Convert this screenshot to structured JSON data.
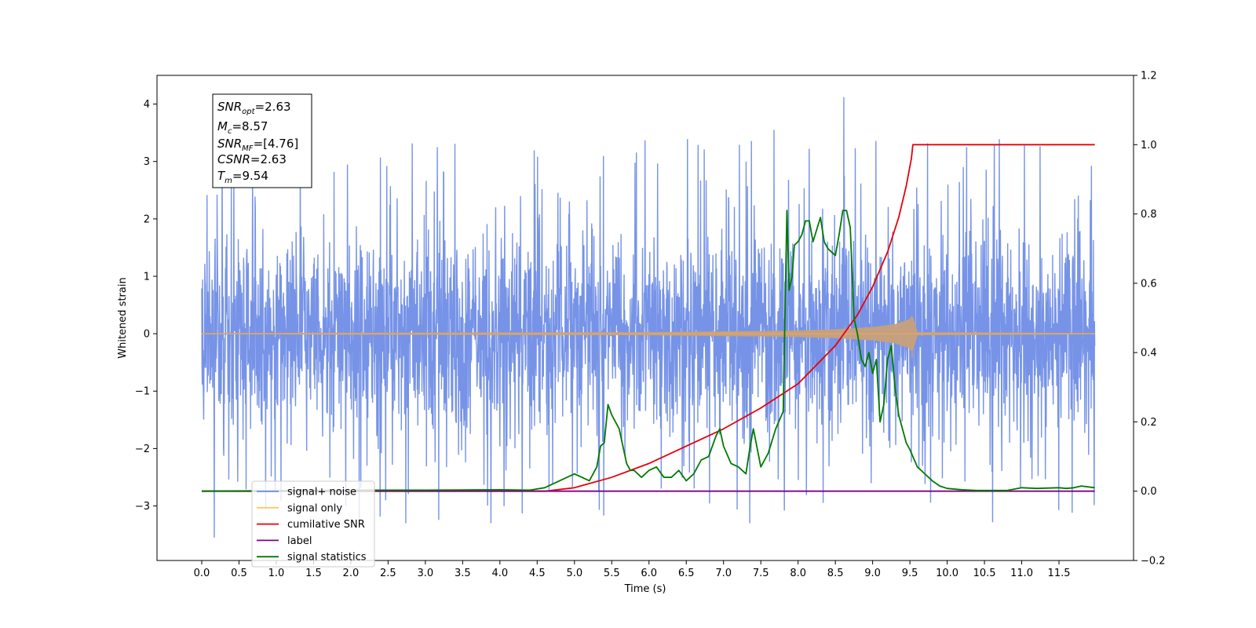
{
  "chart_data": {
    "type": "line",
    "xlabel": "Time (s)",
    "ylabel": "Whitened strain",
    "xlim": [
      -0.6,
      12.5
    ],
    "ylim": [
      -3.95,
      4.5
    ],
    "y2lim": [
      -0.2,
      1.2
    ],
    "x_ticks": [
      0.0,
      0.5,
      1.0,
      1.5,
      2.0,
      2.5,
      3.0,
      3.5,
      4.0,
      4.5,
      5.0,
      5.5,
      6.0,
      6.5,
      7.0,
      7.5,
      8.0,
      8.5,
      9.0,
      9.5,
      10.0,
      10.5,
      11.0,
      11.5
    ],
    "x_tick_labels": [
      "0.0",
      "0.5",
      "1.0",
      "1.5",
      "2.0",
      "2.5",
      "3.0",
      "3.5",
      "4.0",
      "4.5",
      "5.0",
      "5.5",
      "6.0",
      "6.5",
      "7.0",
      "7.5",
      "8.0",
      "8.5",
      "9.0",
      "9.5",
      "10.0",
      "10.5",
      "11.0",
      "11.5"
    ],
    "y_ticks": [
      -3,
      -2,
      -1,
      0,
      1,
      2,
      3,
      4
    ],
    "y_tick_labels": [
      "−3",
      "−2",
      "−1",
      "0",
      "1",
      "2",
      "3",
      "4"
    ],
    "y2_ticks": [
      -0.2,
      0.0,
      0.2,
      0.4,
      0.6,
      0.8,
      1.0,
      1.2
    ],
    "y2_tick_labels": [
      "−0.2",
      "0.0",
      "0.2",
      "0.4",
      "0.6",
      "0.8",
      "1.0",
      "1.2"
    ],
    "grid": false,
    "legend_placement": "lower-left",
    "annotation": {
      "lines": [
        {
          "main": "SNR",
          "sub": "opt",
          "rest": "=2.63"
        },
        {
          "main": "M",
          "sub": "c",
          "rest": "=8.57"
        },
        {
          "main": "SNR",
          "sub": "MF",
          "rest": "=[4.76]"
        },
        {
          "main": "CSNR",
          "sub": "",
          "rest": "=2.63"
        },
        {
          "main": "T",
          "sub": "m",
          "rest": "=9.54"
        }
      ]
    },
    "legend": [
      {
        "label": "signal+ noise",
        "color": "#6f8de6"
      },
      {
        "label": "signal only",
        "color": "#ffc864"
      },
      {
        "label": "cumilative SNR",
        "color": "#e8000b"
      },
      {
        "label": "label",
        "color": "#800080"
      },
      {
        "label": "signal statistics",
        "color": "#007a00"
      }
    ],
    "noise_series": {
      "axis": "left",
      "x_range": [
        0.0,
        11.98
      ],
      "typical_range": [
        -1.8,
        1.8
      ],
      "spike_range": [
        -3.55,
        4.12
      ],
      "color": "#6f8de6"
    },
    "signal_series": {
      "axis": "left",
      "x": [
        0.0,
        6.0,
        7.0,
        7.5,
        8.0,
        8.5,
        9.0,
        9.3,
        9.5,
        9.53,
        9.6,
        12.0
      ],
      "envelope": [
        0.005,
        0.02,
        0.035,
        0.04,
        0.05,
        0.07,
        0.11,
        0.16,
        0.25,
        0.32,
        0.02,
        0.005
      ],
      "color": "#c8a07a"
    },
    "series": [
      {
        "name": "cumilative SNR",
        "axis": "right",
        "color": "#e8000b",
        "x": [
          0.0,
          4.6,
          5.0,
          5.5,
          6.0,
          6.5,
          7.0,
          7.5,
          8.0,
          8.5,
          8.8,
          9.0,
          9.2,
          9.35,
          9.45,
          9.52,
          9.54,
          11.98
        ],
        "values": [
          0.0,
          0.0,
          0.01,
          0.04,
          0.08,
          0.13,
          0.18,
          0.24,
          0.31,
          0.42,
          0.51,
          0.59,
          0.69,
          0.79,
          0.88,
          0.96,
          1.0,
          1.0
        ]
      },
      {
        "name": "label",
        "axis": "right",
        "color": "#800080",
        "x": [
          0.0,
          11.98
        ],
        "values": [
          0.0,
          0.0
        ]
      },
      {
        "name": "signal statistics",
        "axis": "right",
        "color": "#007a00",
        "x": [
          0.0,
          2.0,
          3.0,
          4.0,
          4.4,
          4.6,
          4.9,
          5.0,
          5.1,
          5.2,
          5.3,
          5.35,
          5.4,
          5.45,
          5.5,
          5.6,
          5.7,
          5.75,
          5.8,
          5.9,
          6.0,
          6.1,
          6.2,
          6.3,
          6.4,
          6.5,
          6.6,
          6.7,
          6.8,
          6.9,
          6.95,
          7.0,
          7.1,
          7.2,
          7.3,
          7.35,
          7.4,
          7.5,
          7.55,
          7.6,
          7.7,
          7.8,
          7.85,
          7.88,
          7.92,
          7.95,
          8.0,
          8.05,
          8.1,
          8.15,
          8.2,
          8.3,
          8.35,
          8.4,
          8.5,
          8.55,
          8.6,
          8.65,
          8.7,
          8.75,
          8.8,
          8.85,
          8.9,
          8.95,
          9.0,
          9.05,
          9.1,
          9.15,
          9.2,
          9.25,
          9.3,
          9.35,
          9.4,
          9.45,
          9.5,
          9.6,
          9.7,
          9.8,
          9.9,
          10.0,
          10.2,
          10.4,
          10.6,
          10.8,
          11.0,
          11.2,
          11.5,
          11.6,
          11.7,
          11.8,
          11.98
        ],
        "values": [
          0.0,
          0.003,
          0.003,
          0.004,
          0.003,
          0.01,
          0.04,
          0.05,
          0.04,
          0.03,
          0.07,
          0.13,
          0.14,
          0.25,
          0.22,
          0.18,
          0.08,
          0.06,
          0.06,
          0.04,
          0.06,
          0.07,
          0.04,
          0.04,
          0.06,
          0.03,
          0.05,
          0.09,
          0.1,
          0.16,
          0.18,
          0.13,
          0.08,
          0.07,
          0.05,
          0.12,
          0.18,
          0.07,
          0.09,
          0.11,
          0.18,
          0.23,
          0.81,
          0.58,
          0.62,
          0.71,
          0.72,
          0.74,
          0.78,
          0.78,
          0.72,
          0.79,
          0.72,
          0.7,
          0.68,
          0.74,
          0.81,
          0.81,
          0.76,
          0.5,
          0.45,
          0.38,
          0.36,
          0.4,
          0.34,
          0.38,
          0.2,
          0.25,
          0.38,
          0.42,
          0.3,
          0.22,
          0.18,
          0.14,
          0.12,
          0.07,
          0.05,
          0.03,
          0.015,
          0.008,
          0.004,
          0.002,
          0.002,
          0.002,
          0.01,
          0.008,
          0.01,
          0.008,
          0.01,
          0.015,
          0.01
        ]
      }
    ]
  }
}
